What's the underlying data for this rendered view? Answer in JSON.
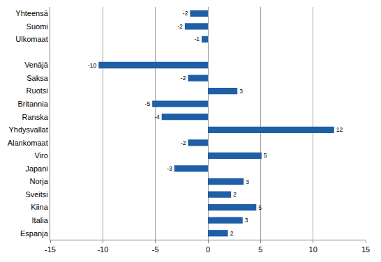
{
  "chart_data": {
    "type": "bar",
    "orientation": "horizontal",
    "categories": [
      "Yhteensä",
      "Suomi",
      "Ulkomaat",
      null,
      "Venäjä",
      "Saksa",
      "Ruotsi",
      "Britannia",
      "Ranska",
      "Yhdysvallat",
      "Alankomaat",
      "Viro",
      "Japani",
      "Norja",
      "Sveitsi",
      "Kiina",
      "Italia",
      "Espanja"
    ],
    "values": [
      -1.7,
      -2.2,
      -0.6,
      null,
      -10.4,
      -1.9,
      2.8,
      -5.3,
      -4.4,
      12.0,
      -1.9,
      5.1,
      -3.2,
      3.4,
      2.2,
      4.6,
      3.3,
      1.9
    ],
    "value_labels": [
      "-2",
      "-2",
      "-1",
      null,
      "-10",
      "-2",
      "3",
      "-5",
      "-4",
      "12",
      "-2",
      "5",
      "-3",
      "3",
      "2",
      "5",
      "3",
      "2"
    ],
    "color": "#1f5fa6",
    "xlim": [
      -15,
      15
    ],
    "xticks": [
      -15,
      -10,
      -5,
      0,
      5,
      10,
      15
    ],
    "grid": true,
    "data_labels": true
  }
}
